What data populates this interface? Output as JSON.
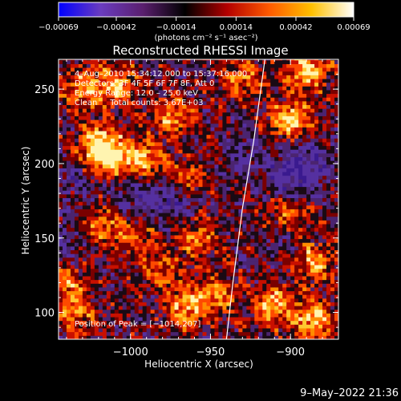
{
  "chart_data": {
    "type": "heatmap",
    "title": "Reconstructed RHESSI Image",
    "xlabel": "Heliocentric X (arcsec)",
    "ylabel": "Heliocentric Y (arcsec)",
    "xlim": [
      -1045,
      -870
    ],
    "ylim": [
      82,
      270
    ],
    "xticks": [
      -1000,
      -950,
      -900
    ],
    "xtick_labels": [
      "−1000",
      "−950",
      "−900"
    ],
    "yticks": [
      100,
      150,
      200,
      250
    ],
    "ytick_labels": [
      "100",
      "150",
      "200",
      "250"
    ],
    "colorbar": {
      "ticks": [
        -0.00069,
        -0.00042,
        -0.00014,
        0.00014,
        0.00042,
        0.00069
      ],
      "tick_labels": [
        "−0.00069",
        "−0.00042",
        "−0.00014",
        "0.00014",
        "0.00042",
        "0.00069"
      ],
      "units_label": "(photons cm⁻² s⁻¹ asec⁻²)",
      "colors": [
        "#0000ff",
        "#6a3cbf",
        "#5a1f6e",
        "#000000",
        "#b30000",
        "#ff5a00",
        "#ffc000",
        "#ffffff"
      ]
    },
    "annotations": [
      "4–Aug–2010 15:34:12.000 to 15:37:16.000",
      "Detectors: 3F 4F 5F 6F 7F 8F, Att 0",
      "Energy Range: 12.0 – 25.0 keV",
      "Clean     Total counts: 3.67E+03"
    ],
    "peak_label": "Position of Peak = [−1014,207]",
    "peak": {
      "x": -1014,
      "y": 207
    },
    "limb_curve": [
      {
        "x": -940,
        "y": 82
      },
      {
        "x": -936,
        "y": 120
      },
      {
        "x": -930,
        "y": 170
      },
      {
        "x": -923,
        "y": 215
      },
      {
        "x": -916,
        "y": 270
      }
    ],
    "bright_sources": [
      {
        "x": -1019,
        "y": 213,
        "amp": 1.0
      },
      {
        "x": -1013,
        "y": 202,
        "amp": 0.85
      },
      {
        "x": -992,
        "y": 202,
        "amp": 0.75
      },
      {
        "x": -975,
        "y": 232,
        "amp": 0.65
      },
      {
        "x": -1030,
        "y": 250,
        "amp": 0.7
      },
      {
        "x": -1009,
        "y": 252,
        "amp": 0.75
      },
      {
        "x": -1020,
        "y": 160,
        "amp": 0.6
      },
      {
        "x": -998,
        "y": 152,
        "amp": 0.55
      },
      {
        "x": -958,
        "y": 150,
        "amp": 0.6
      },
      {
        "x": -965,
        "y": 190,
        "amp": 0.55
      },
      {
        "x": -965,
        "y": 102,
        "amp": 0.7
      },
      {
        "x": -948,
        "y": 112,
        "amp": 0.6
      },
      {
        "x": -900,
        "y": 230,
        "amp": 0.9
      },
      {
        "x": -890,
        "y": 262,
        "amp": 0.85
      },
      {
        "x": -930,
        "y": 258,
        "amp": 0.6
      },
      {
        "x": -902,
        "y": 165,
        "amp": 0.65
      },
      {
        "x": -885,
        "y": 135,
        "amp": 0.7
      },
      {
        "x": -910,
        "y": 105,
        "amp": 0.75
      },
      {
        "x": -885,
        "y": 95,
        "amp": 0.8
      },
      {
        "x": -1040,
        "y": 120,
        "amp": 0.5
      },
      {
        "x": -1035,
        "y": 100,
        "amp": 0.55
      },
      {
        "x": -980,
        "y": 128,
        "amp": 0.45
      }
    ],
    "cold_regions": [
      {
        "x": -975,
        "y": 175,
        "amp": 0.9
      },
      {
        "x": -1000,
        "y": 182,
        "amp": 0.7
      },
      {
        "x": -900,
        "y": 190,
        "amp": 0.9
      },
      {
        "x": -888,
        "y": 200,
        "amp": 0.8
      },
      {
        "x": -930,
        "y": 205,
        "amp": 0.6
      },
      {
        "x": -1035,
        "y": 190,
        "amp": 0.6
      },
      {
        "x": -905,
        "y": 150,
        "amp": 0.5
      },
      {
        "x": -1042,
        "y": 150,
        "amp": 0.55
      }
    ]
  },
  "footer": {
    "timestamp": "9–May–2022 21:36"
  }
}
